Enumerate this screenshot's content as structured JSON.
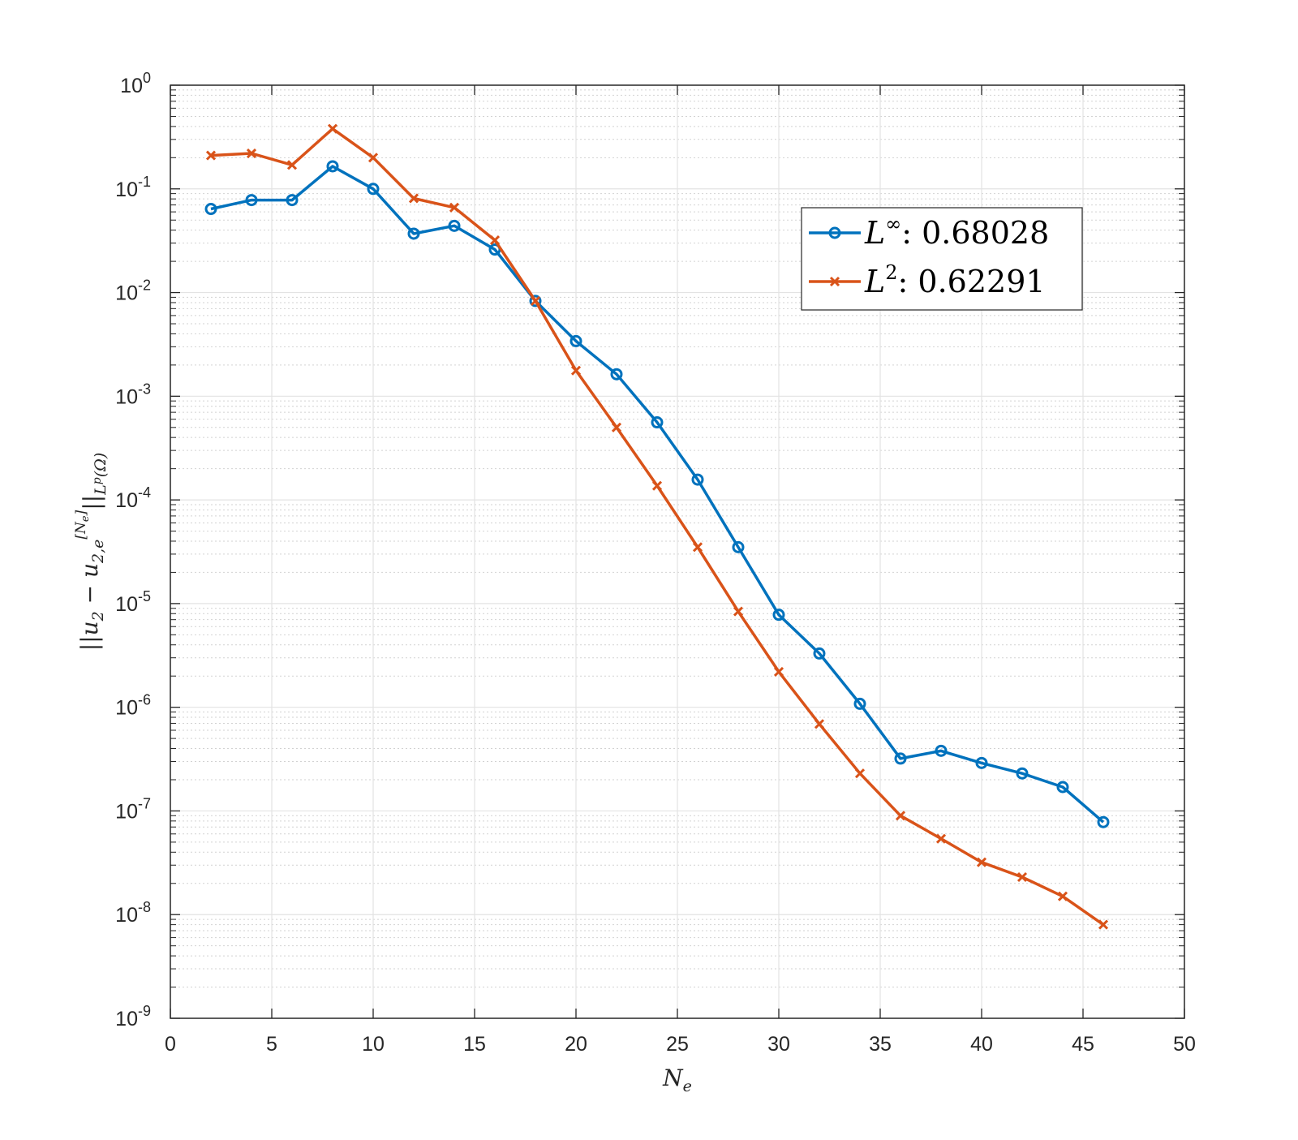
{
  "chart_data": {
    "type": "line",
    "title": "",
    "xlabel": "N_e",
    "ylabel": "||u_2 - u_{2,e}^{[N_e]}||_{L^p(Ω)}",
    "xlim": [
      0,
      50
    ],
    "ylim_log10": [
      -9,
      0
    ],
    "yscale": "log",
    "grid": true,
    "minor_grid": true,
    "legend_position": "top-right",
    "x_ticks": [
      0,
      5,
      10,
      15,
      20,
      25,
      30,
      35,
      40,
      45,
      50
    ],
    "y_tick_exponents": [
      0,
      -1,
      -2,
      -3,
      -4,
      -5,
      -6,
      -7,
      -8,
      -9
    ],
    "x": [
      2,
      4,
      6,
      8,
      10,
      12,
      14,
      16,
      18,
      20,
      22,
      24,
      26,
      28,
      30,
      32,
      34,
      36,
      38,
      40,
      42,
      44,
      46
    ],
    "series": [
      {
        "name": "L^∞",
        "legend_value": "0.68028",
        "color": "#0072BD",
        "marker": "circle",
        "values": [
          0.064,
          0.078,
          0.078,
          0.165,
          0.1,
          0.037,
          0.044,
          0.026,
          0.0083,
          0.0034,
          0.00163,
          0.00056,
          0.000157,
          3.5e-05,
          7.8e-06,
          3.3e-06,
          1.08e-06,
          3.2e-07,
          3.8e-07,
          2.9e-07,
          2.3e-07,
          1.7e-07,
          7.8e-08
        ]
      },
      {
        "name": "L^2",
        "legend_value": "0.62291",
        "color": "#D95319",
        "marker": "x",
        "values": [
          0.21,
          0.22,
          0.17,
          0.38,
          0.2,
          0.081,
          0.066,
          0.032,
          0.0083,
          0.00177,
          0.0005,
          0.000137,
          3.5e-05,
          8.4e-06,
          2.2e-06,
          6.9e-07,
          2.3e-07,
          9e-08,
          5.4e-08,
          3.2e-08,
          2.3e-08,
          1.5e-08,
          8e-09
        ]
      }
    ]
  }
}
